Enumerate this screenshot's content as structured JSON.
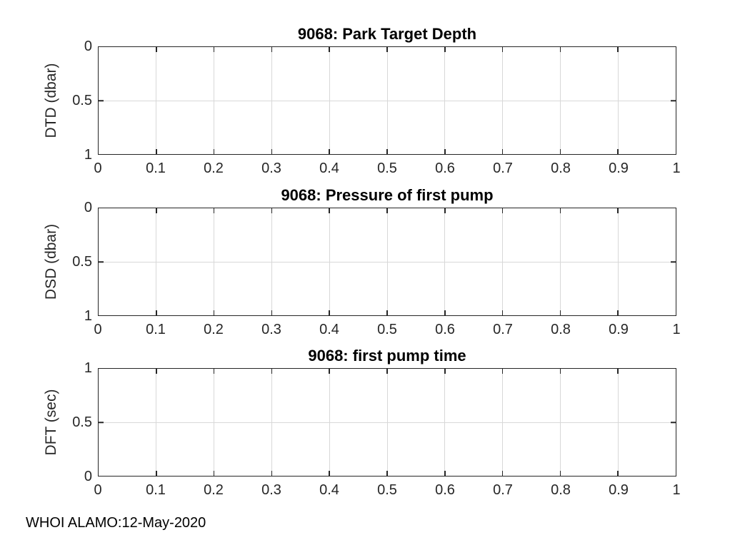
{
  "footer": {
    "text": "WHOI ALAMO:12-May-2020"
  },
  "colors": {
    "background": "#ffffff",
    "axis": "#262626",
    "grid": "#d8d8d8",
    "title": "#000000"
  },
  "axes": {
    "x_tick_labels": [
      "0",
      "0.1",
      "0.2",
      "0.3",
      "0.4",
      "0.5",
      "0.6",
      "0.7",
      "0.8",
      "0.9",
      "1"
    ]
  },
  "subplots": [
    {
      "title": "9068: Park Target Depth",
      "ylabel": "DTD (dbar)",
      "y_tick_labels": [
        "0",
        "0.5",
        "1"
      ]
    },
    {
      "title": "9068: Pressure of first pump",
      "ylabel": "DSD (dbar)",
      "y_tick_labels": [
        "0",
        "0.5",
        "1"
      ]
    },
    {
      "title": "9068: first pump time",
      "ylabel": "DFT (sec)",
      "y_tick_labels": [
        "1",
        "0.5",
        "0"
      ]
    }
  ],
  "chart_data": [
    {
      "type": "line",
      "title": "9068: Park Target Depth",
      "xlabel": "",
      "ylabel": "DTD (dbar)",
      "xlim": [
        0,
        1
      ],
      "ylim": [
        0,
        1
      ],
      "y_direction": "reverse",
      "x_ticks": [
        0,
        0.1,
        0.2,
        0.3,
        0.4,
        0.5,
        0.6,
        0.7,
        0.8,
        0.9,
        1
      ],
      "y_ticks": [
        0,
        0.5,
        1
      ],
      "grid": true,
      "legend": null,
      "series": []
    },
    {
      "type": "line",
      "title": "9068: Pressure of first pump",
      "xlabel": "",
      "ylabel": "DSD (dbar)",
      "xlim": [
        0,
        1
      ],
      "ylim": [
        0,
        1
      ],
      "y_direction": "reverse",
      "x_ticks": [
        0,
        0.1,
        0.2,
        0.3,
        0.4,
        0.5,
        0.6,
        0.7,
        0.8,
        0.9,
        1
      ],
      "y_ticks": [
        0,
        0.5,
        1
      ],
      "grid": true,
      "legend": null,
      "series": []
    },
    {
      "type": "line",
      "title": "9068: first pump time",
      "xlabel": "",
      "ylabel": "DFT (sec)",
      "xlim": [
        0,
        1
      ],
      "ylim": [
        0,
        1
      ],
      "y_direction": "normal",
      "x_ticks": [
        0,
        0.1,
        0.2,
        0.3,
        0.4,
        0.5,
        0.6,
        0.7,
        0.8,
        0.9,
        1
      ],
      "y_ticks": [
        0,
        0.5,
        1
      ],
      "grid": true,
      "legend": null,
      "series": []
    }
  ]
}
